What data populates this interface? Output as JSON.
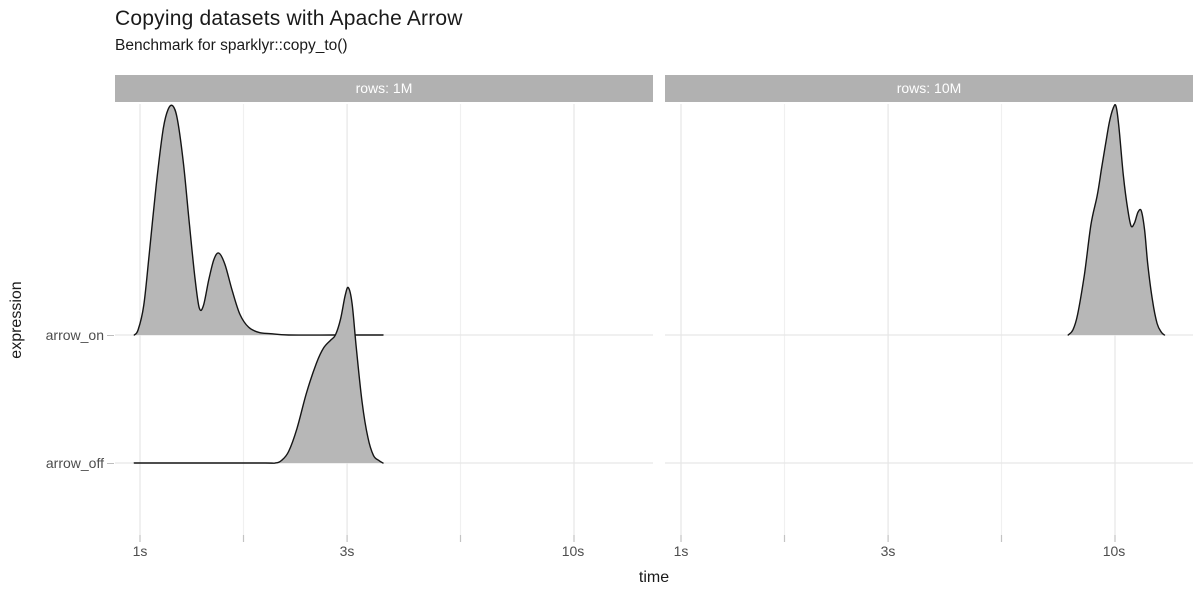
{
  "header": {
    "title": "Copying datasets with Apache Arrow",
    "subtitle": "Benchmark for sparklyr::copy_to()"
  },
  "chart_data": {
    "type": "area",
    "variant": "faceted-ridgeline-density",
    "title": "Copying datasets with Apache Arrow",
    "subtitle": "Benchmark for sparklyr::copy_to()",
    "xlabel": "time",
    "ylabel": "expression",
    "x_scale": "log10-seconds",
    "x_range_s": [
      0.88,
      15.2
    ],
    "grid": "on",
    "legend": "none",
    "y_axis": [
      {
        "key": "arrow_on",
        "label": "arrow_on"
      },
      {
        "key": "arrow_off",
        "label": "arrow_off"
      }
    ],
    "facets": [
      {
        "strip": "rows: 1M",
        "x_ticks": [
          {
            "label": "1s",
            "s": 1
          },
          {
            "label": "3s",
            "s": 3
          },
          {
            "label": "10s",
            "s": 10
          }
        ],
        "minor_ticks_s": [
          1.732,
          5.477
        ],
        "series": [
          {
            "name": "arrow_on",
            "points": [
              [
                0.97,
                0
              ],
              [
                0.99,
                0.04
              ],
              [
                1.02,
                0.23
              ],
              [
                1.05,
                0.63
              ],
              [
                1.09,
                1.17
              ],
              [
                1.13,
                1.6
              ],
              [
                1.16,
                1.76
              ],
              [
                1.19,
                1.79
              ],
              [
                1.22,
                1.68
              ],
              [
                1.26,
                1.33
              ],
              [
                1.3,
                0.86
              ],
              [
                1.34,
                0.43
              ],
              [
                1.37,
                0.21
              ],
              [
                1.4,
                0.23
              ],
              [
                1.44,
                0.43
              ],
              [
                1.48,
                0.59
              ],
              [
                1.52,
                0.64
              ],
              [
                1.57,
                0.55
              ],
              [
                1.63,
                0.35
              ],
              [
                1.7,
                0.16
              ],
              [
                1.78,
                0.06
              ],
              [
                1.88,
                0.02
              ],
              [
                2.0,
                0.01
              ],
              [
                2.2,
                0
              ],
              [
                2.8,
                0
              ],
              [
                3.3,
                0
              ],
              [
                3.63,
                0
              ]
            ]
          },
          {
            "name": "arrow_off",
            "points": [
              [
                0.97,
                0
              ],
              [
                1.5,
                0
              ],
              [
                1.95,
                0
              ],
              [
                2.05,
                0
              ],
              [
                2.12,
                0.02
              ],
              [
                2.2,
                0.09
              ],
              [
                2.3,
                0.27
              ],
              [
                2.42,
                0.55
              ],
              [
                2.55,
                0.78
              ],
              [
                2.65,
                0.9
              ],
              [
                2.75,
                0.96
              ],
              [
                2.82,
                1.0
              ],
              [
                2.9,
                1.13
              ],
              [
                2.97,
                1.31
              ],
              [
                3.02,
                1.37
              ],
              [
                3.08,
                1.25
              ],
              [
                3.15,
                0.9
              ],
              [
                3.25,
                0.47
              ],
              [
                3.35,
                0.2
              ],
              [
                3.45,
                0.06
              ],
              [
                3.55,
                0.02
              ],
              [
                3.63,
                0
              ]
            ]
          }
        ]
      },
      {
        "strip": "rows: 10M",
        "x_ticks": [
          {
            "label": "1s",
            "s": 1
          },
          {
            "label": "3s",
            "s": 3
          },
          {
            "label": "10s",
            "s": 10
          }
        ],
        "minor_ticks_s": [
          1.732,
          5.477
        ],
        "series": [
          {
            "name": "arrow_on",
            "points": [
              [
                7.8,
                0
              ],
              [
                8.0,
                0.04
              ],
              [
                8.2,
                0.16
              ],
              [
                8.5,
                0.47
              ],
              [
                8.8,
                0.86
              ],
              [
                9.1,
                1.09
              ],
              [
                9.3,
                1.29
              ],
              [
                9.5,
                1.48
              ],
              [
                9.7,
                1.66
              ],
              [
                9.9,
                1.77
              ],
              [
                10.05,
                1.79
              ],
              [
                10.2,
                1.64
              ],
              [
                10.45,
                1.25
              ],
              [
                10.7,
                0.98
              ],
              [
                10.9,
                0.85
              ],
              [
                11.1,
                0.88
              ],
              [
                11.3,
                0.96
              ],
              [
                11.5,
                0.97
              ],
              [
                11.7,
                0.82
              ],
              [
                11.9,
                0.55
              ],
              [
                12.2,
                0.27
              ],
              [
                12.5,
                0.09
              ],
              [
                12.8,
                0.02
              ],
              [
                13.0,
                0
              ]
            ]
          },
          {
            "name": "arrow_off",
            "points": []
          }
        ]
      }
    ],
    "colors": {
      "fill": "#b7b7b7",
      "stroke": "#151515",
      "strip_bg": "#b1b1b1",
      "strip_text": "#ffffff",
      "grid_major": "#e6e6e6",
      "grid_minor": "#f0f0f0",
      "tick": "#c3c3c3",
      "axis_text": "#4d4d4d",
      "title_text": "#1a1a1a"
    }
  }
}
